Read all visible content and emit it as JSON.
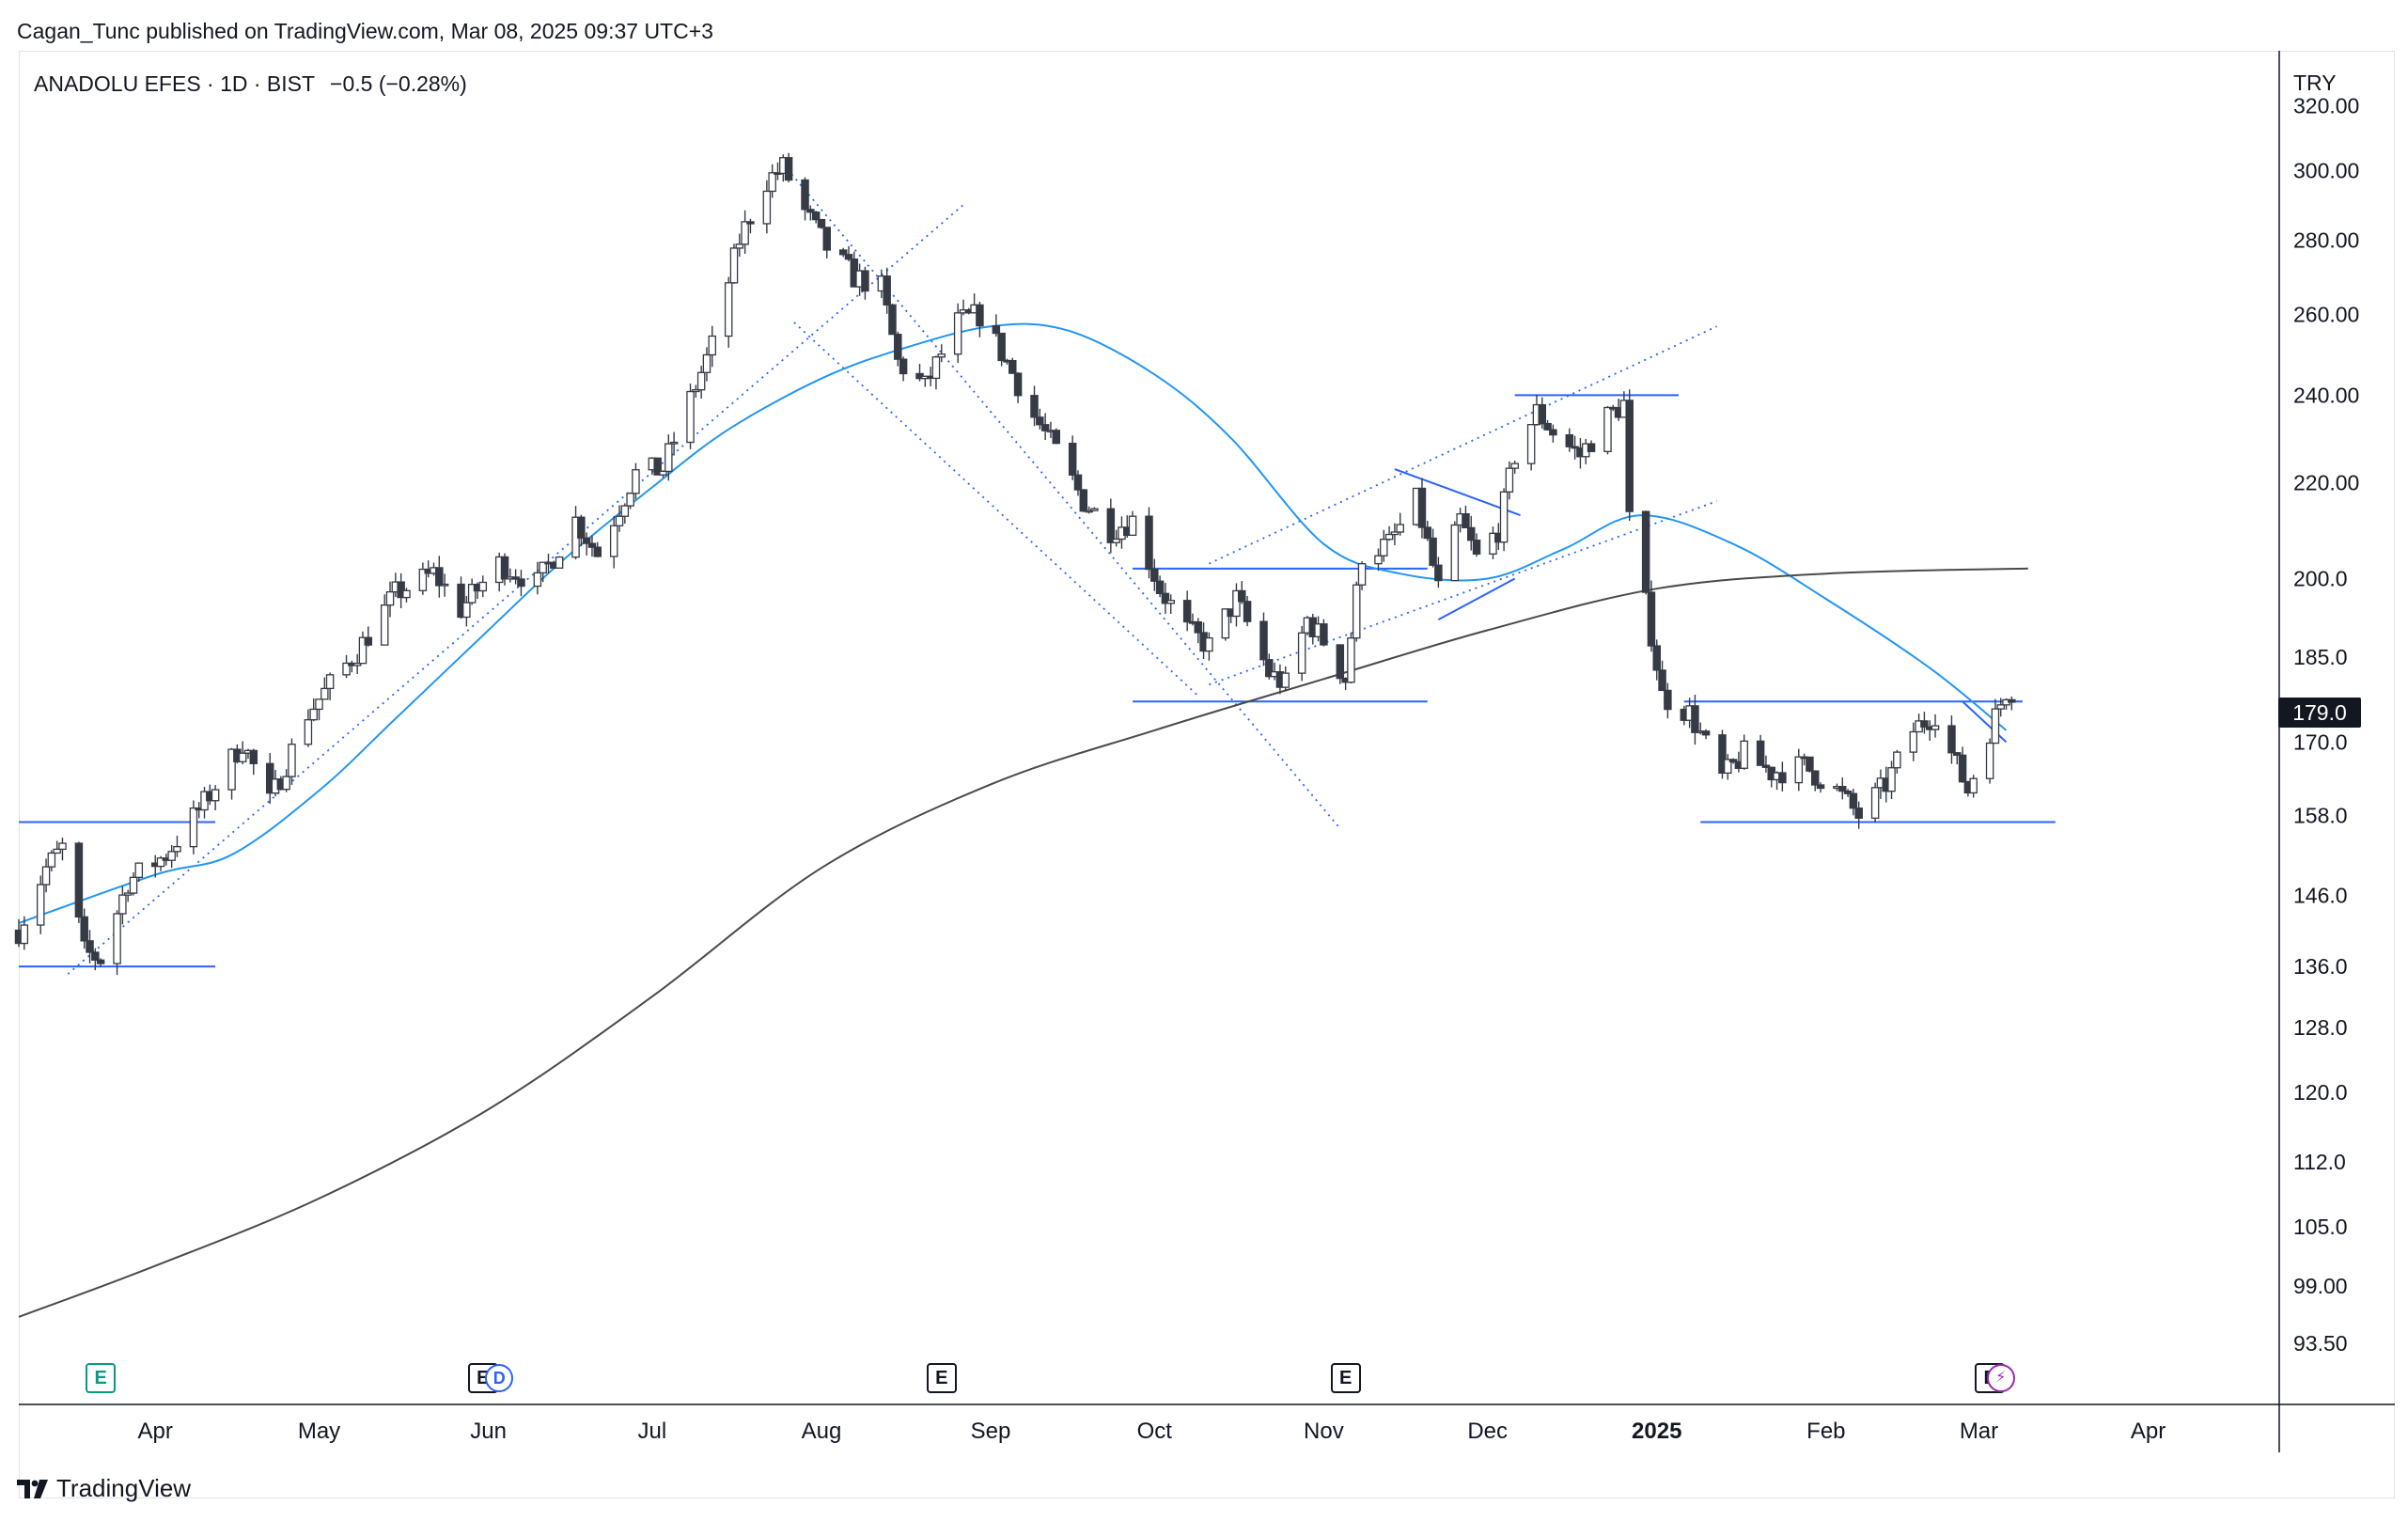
{
  "header": {
    "text": "Cagan_Tunc published on TradingView.com, Mar 08, 2025 09:37 UTC+3"
  },
  "legend": {
    "symbol": "ANADOLU EFES · 1D · BIST",
    "change": "−0.5 (−0.28%)"
  },
  "currency": "TRY",
  "last_price_label": "179.0",
  "brand": {
    "text": "TradingView"
  },
  "colors": {
    "ma_short": "#2196f3",
    "ma_long": "#4a4a4a",
    "trendline": "#2962ff",
    "candle_down": "#363a45",
    "candle_up": "#ffffff"
  },
  "events": [
    {
      "label": "E",
      "kind": "earnings-upcoming",
      "date": "2024-03-22"
    },
    {
      "label": "E",
      "kind": "earnings",
      "date": "2024-05-31"
    },
    {
      "label": "D",
      "kind": "dividend",
      "date": "2024-06-03"
    },
    {
      "label": "E",
      "kind": "earnings",
      "date": "2024-08-23"
    },
    {
      "label": "E",
      "kind": "earnings",
      "date": "2024-11-05"
    },
    {
      "label": "E",
      "kind": "earnings",
      "date": "2025-03-03"
    },
    {
      "label": "⚡",
      "kind": "split-or-other",
      "date": "2025-03-05"
    }
  ],
  "chart_data": {
    "type": "candlestick",
    "symbol": "ANADOLU EFES",
    "interval": "1D",
    "exchange": "BIST",
    "y_scale": "log",
    "ylim": [
      88,
      338
    ],
    "xlim": [
      "2024-03-07",
      "2025-04-25"
    ],
    "y_ticks": [
      320.0,
      300.0,
      280.0,
      260.0,
      240.0,
      220.0,
      200.0,
      185.0,
      170.0,
      158.0,
      146.0,
      136.0,
      128.0,
      120.0,
      112.0,
      105.0,
      99.0,
      93.5
    ],
    "y_tick_labels": [
      "320.00",
      "300.00",
      "280.00",
      "260.00",
      "240.00",
      "220.00",
      "200.0",
      "185.0",
      "170.0",
      "158.0",
      "146.0",
      "136.0",
      "128.0",
      "120.0",
      "112.0",
      "105.0",
      "99.00",
      "93.50"
    ],
    "x_ticks": [
      {
        "label": "Apr",
        "date": "2024-04-01"
      },
      {
        "label": "May",
        "date": "2024-05-01"
      },
      {
        "label": "Jun",
        "date": "2024-06-01"
      },
      {
        "label": "Jul",
        "date": "2024-07-01"
      },
      {
        "label": "Aug",
        "date": "2024-08-01"
      },
      {
        "label": "Sep",
        "date": "2024-09-01"
      },
      {
        "label": "Oct",
        "date": "2024-10-01"
      },
      {
        "label": "Nov",
        "date": "2024-11-01"
      },
      {
        "label": "Dec",
        "date": "2024-12-01"
      },
      {
        "label": "2025",
        "date": "2025-01-01"
      },
      {
        "label": "Feb",
        "date": "2025-02-01"
      },
      {
        "label": "Mar",
        "date": "2025-03-01"
      },
      {
        "label": "Apr",
        "date": "2025-04-01"
      }
    ],
    "price_anchors": [
      [
        "2024-03-07",
        141
      ],
      [
        "2024-03-12",
        150
      ],
      [
        "2024-03-15",
        153
      ],
      [
        "2024-03-19",
        138
      ],
      [
        "2024-03-22",
        137
      ],
      [
        "2024-03-27",
        148
      ],
      [
        "2024-04-03",
        152
      ],
      [
        "2024-04-10",
        160
      ],
      [
        "2024-04-17",
        170
      ],
      [
        "2024-04-22",
        160
      ],
      [
        "2024-04-29",
        175
      ],
      [
        "2024-05-08",
        186
      ],
      [
        "2024-05-15",
        197
      ],
      [
        "2024-05-22",
        201
      ],
      [
        "2024-05-27",
        194
      ],
      [
        "2024-06-03",
        203
      ],
      [
        "2024-06-10",
        199
      ],
      [
        "2024-06-17",
        212
      ],
      [
        "2024-06-21",
        205
      ],
      [
        "2024-06-28",
        222
      ],
      [
        "2024-07-03",
        223
      ],
      [
        "2024-07-08",
        239
      ],
      [
        "2024-07-12",
        252
      ],
      [
        "2024-07-17",
        280
      ],
      [
        "2024-07-22",
        297
      ],
      [
        "2024-07-25",
        301
      ],
      [
        "2024-07-29",
        288
      ],
      [
        "2024-08-02",
        278
      ],
      [
        "2024-08-07",
        270
      ],
      [
        "2024-08-12",
        267
      ],
      [
        "2024-08-15",
        248
      ],
      [
        "2024-08-20",
        242
      ],
      [
        "2024-08-26",
        258
      ],
      [
        "2024-08-30",
        260
      ],
      [
        "2024-09-04",
        248
      ],
      [
        "2024-09-09",
        235
      ],
      [
        "2024-09-13",
        227
      ],
      [
        "2024-09-18",
        216
      ],
      [
        "2024-09-23",
        210
      ],
      [
        "2024-09-27",
        212
      ],
      [
        "2024-10-02",
        198
      ],
      [
        "2024-10-07",
        190
      ],
      [
        "2024-10-11",
        187
      ],
      [
        "2024-10-16",
        196
      ],
      [
        "2024-10-22",
        182
      ],
      [
        "2024-10-25",
        180
      ],
      [
        "2024-10-29",
        192
      ],
      [
        "2024-11-01",
        188
      ],
      [
        "2024-11-05",
        181
      ],
      [
        "2024-11-08",
        205
      ],
      [
        "2024-11-13",
        207
      ],
      [
        "2024-11-18",
        216
      ],
      [
        "2024-11-22",
        198
      ],
      [
        "2024-11-26",
        212
      ],
      [
        "2024-11-29",
        204
      ],
      [
        "2024-12-03",
        210
      ],
      [
        "2024-12-06",
        226
      ],
      [
        "2024-12-10",
        236
      ],
      [
        "2024-12-14",
        230
      ],
      [
        "2024-12-18",
        226
      ],
      [
        "2024-12-23",
        235
      ],
      [
        "2024-12-26",
        238
      ],
      [
        "2024-12-27",
        212
      ],
      [
        "2025-01-02",
        178
      ],
      [
        "2025-01-07",
        175
      ],
      [
        "2025-01-13",
        164
      ],
      [
        "2025-01-17",
        168
      ],
      [
        "2025-01-22",
        165
      ],
      [
        "2025-01-28",
        166
      ],
      [
        "2025-02-03",
        162
      ],
      [
        "2025-02-07",
        158
      ],
      [
        "2025-02-12",
        163
      ],
      [
        "2025-02-17",
        172
      ],
      [
        "2025-02-21",
        175
      ],
      [
        "2025-02-24",
        168
      ],
      [
        "2025-02-27",
        162
      ],
      [
        "2025-03-03",
        172
      ],
      [
        "2025-03-06",
        179
      ],
      [
        "2025-03-07",
        179
      ]
    ],
    "series": [
      {
        "name": "",
        "kind": "moving-average-short",
        "color": "#2196f3",
        "points": [
          [
            "2024-03-07",
            142
          ],
          [
            "2024-04-01",
            149
          ],
          [
            "2024-04-15",
            152
          ],
          [
            "2024-05-01",
            162
          ],
          [
            "2024-05-15",
            174
          ],
          [
            "2024-06-01",
            190
          ],
          [
            "2024-06-15",
            204
          ],
          [
            "2024-07-01",
            219
          ],
          [
            "2024-07-15",
            232
          ],
          [
            "2024-08-01",
            244
          ],
          [
            "2024-08-15",
            251
          ],
          [
            "2024-09-01",
            257
          ],
          [
            "2024-09-15",
            256
          ],
          [
            "2024-10-01",
            245
          ],
          [
            "2024-10-15",
            230
          ],
          [
            "2024-11-01",
            207
          ],
          [
            "2024-11-15",
            201
          ],
          [
            "2024-12-01",
            200
          ],
          [
            "2024-12-15",
            206
          ],
          [
            "2024-12-29",
            213
          ],
          [
            "2025-01-15",
            207
          ],
          [
            "2025-02-01",
            196
          ],
          [
            "2025-02-20",
            183
          ],
          [
            "2025-03-06",
            172
          ]
        ]
      },
      {
        "name": "",
        "kind": "moving-average-long",
        "color": "#4a4a4a",
        "points": [
          [
            "2024-03-07",
            96
          ],
          [
            "2024-04-01",
            101
          ],
          [
            "2024-05-01",
            108
          ],
          [
            "2024-06-01",
            118
          ],
          [
            "2024-07-01",
            132
          ],
          [
            "2024-08-01",
            150
          ],
          [
            "2024-09-01",
            163
          ],
          [
            "2024-10-01",
            172
          ],
          [
            "2024-11-01",
            181
          ],
          [
            "2024-12-01",
            190
          ],
          [
            "2025-01-01",
            198
          ],
          [
            "2025-02-01",
            201
          ],
          [
            "2025-03-10",
            202
          ]
        ]
      }
    ],
    "drawings": [
      {
        "type": "horizontal",
        "y": 157,
        "x": [
          "2024-03-07",
          "2024-04-12"
        ],
        "style": "solid"
      },
      {
        "type": "horizontal",
        "y": 136,
        "x": [
          "2024-03-07",
          "2024-04-12"
        ],
        "style": "solid"
      },
      {
        "type": "horizontal",
        "y": 202,
        "x": [
          "2024-09-27",
          "2024-11-20"
        ],
        "style": "solid"
      },
      {
        "type": "horizontal",
        "y": 177,
        "x": [
          "2024-09-27",
          "2024-11-20"
        ],
        "style": "solid"
      },
      {
        "type": "horizontal",
        "y": 240,
        "x": [
          "2024-12-06",
          "2025-01-05"
        ],
        "style": "solid"
      },
      {
        "type": "horizontal",
        "y": 177,
        "x": [
          "2025-01-06",
          "2025-03-09"
        ],
        "style": "solid"
      },
      {
        "type": "horizontal",
        "y": 157,
        "x": [
          "2025-01-09",
          "2025-03-15"
        ],
        "style": "solid"
      },
      {
        "type": "segment",
        "from": [
          "2024-11-14",
          223
        ],
        "to": [
          "2024-12-07",
          213
        ],
        "style": "solid"
      },
      {
        "type": "segment",
        "from": [
          "2024-11-22",
          192
        ],
        "to": [
          "2024-12-06",
          200
        ],
        "style": "solid"
      },
      {
        "type": "segment",
        "from": [
          "2025-02-26",
          177
        ],
        "to": [
          "2025-03-06",
          170
        ],
        "style": "solid"
      },
      {
        "type": "segment",
        "from": [
          "2024-03-16",
          135
        ],
        "to": [
          "2024-08-27",
          290
        ],
        "style": "dotted"
      },
      {
        "type": "segment",
        "from": [
          "2024-07-25",
          302
        ],
        "to": [
          "2024-11-04",
          156
        ],
        "style": "dotted"
      },
      {
        "type": "segment",
        "from": [
          "2024-07-27",
          258
        ],
        "to": [
          "2024-10-09",
          178
        ],
        "style": "dotted"
      },
      {
        "type": "segment",
        "from": [
          "2024-10-11",
          180
        ],
        "to": [
          "2025-01-12",
          216
        ],
        "style": "dotted"
      },
      {
        "type": "segment",
        "from": [
          "2024-10-11",
          203
        ],
        "to": [
          "2025-01-12",
          257
        ],
        "style": "dotted"
      }
    ],
    "title": "",
    "xlabel": "",
    "ylabel": ""
  }
}
